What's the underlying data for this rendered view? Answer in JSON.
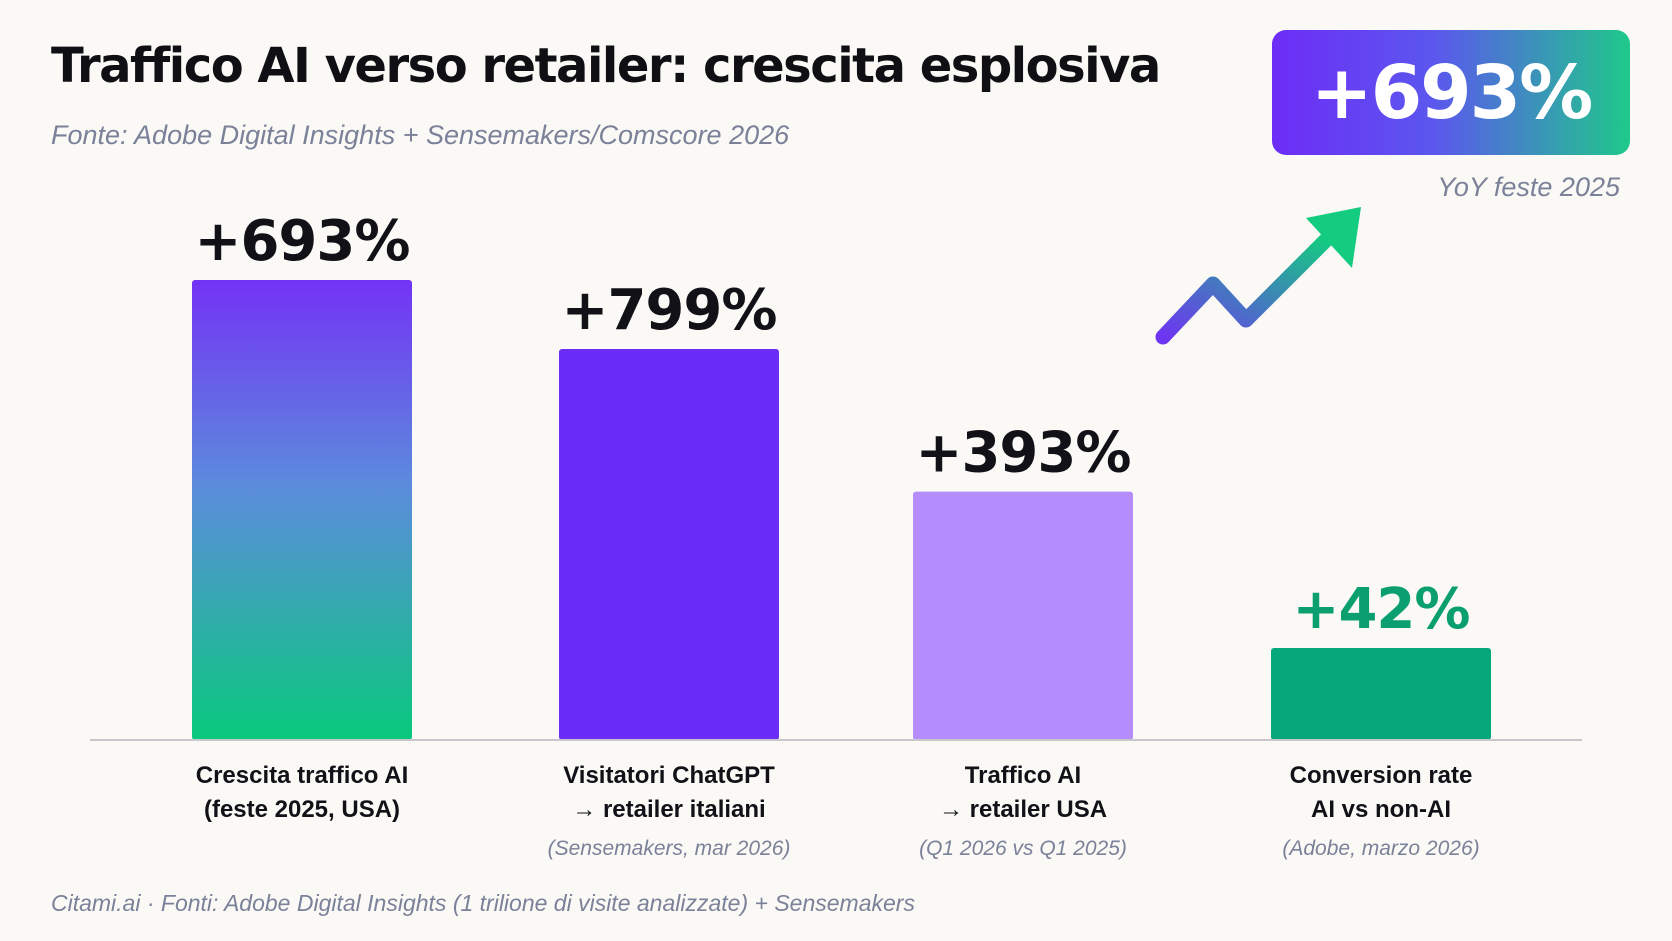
{
  "header": {
    "title": "Traffico AI verso retailer: crescita esplosiva",
    "subtitle": "Fonte: Adobe Digital Insights + Sensemakers/Comscore 2026"
  },
  "kpi": {
    "value": "+693%",
    "caption": "YoY feste 2025",
    "icon": "trend-up-arrow-icon"
  },
  "footer": {
    "text": "Citami.ai · Fonti: Adobe Digital Insights (1 trilione di visite analizzate) + Sensemakers"
  },
  "colors": {
    "purple": "#6a2df7",
    "light_purple": "#b48cfb",
    "green": "#06a87a",
    "gradient_top": "#7333f5",
    "gradient_bottom": "#08c97c",
    "axis": "#c8c8cc"
  },
  "chart_data": {
    "type": "bar",
    "value_unit": "%",
    "note": "bar heights are not proportional to the printed values in the original",
    "categories": [
      {
        "label_line1": "Crescita traffico AI",
        "label_line2": "(feste 2025, USA)",
        "note": ""
      },
      {
        "label_line1": "Visitatori ChatGPT",
        "label_line2": "→ retailer italiani",
        "note": "(Sensemakers, mar 2026)"
      },
      {
        "label_line1": "Traffico AI",
        "label_line2": "→ retailer USA",
        "note": "(Q1 2026 vs Q1 2025)"
      },
      {
        "label_line1": "Conversion rate",
        "label_line2": "AI vs non-AI",
        "note": "(Adobe, marzo 2026)"
      }
    ],
    "values": [
      693,
      799,
      393,
      42
    ],
    "data_labels": [
      "+693%",
      "+799%",
      "+393%",
      "+42%"
    ],
    "relative_bar_heights": [
      1.0,
      0.85,
      0.54,
      0.2
    ],
    "bar_fills": [
      "gradient",
      "purple",
      "light_purple",
      "green"
    ],
    "label_colors": [
      "#111117",
      "#111117",
      "#111117",
      "#0b9e6f"
    ],
    "grid": false
  }
}
